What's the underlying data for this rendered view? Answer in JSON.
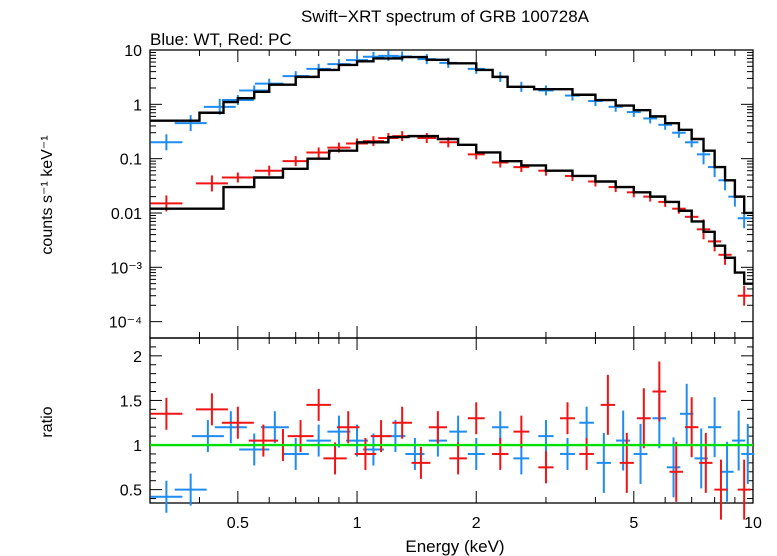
{
  "title": "Swift−XRT spectrum of GRB 100728A",
  "subtitle": "Blue: WT, Red: PC",
  "colors": {
    "wt": "#1e8cf0",
    "pc": "#f01414",
    "model": "#000000",
    "unity": "#00e000"
  },
  "chart_data": [
    {
      "type": "scatter",
      "panel": "spectrum",
      "ylabel": "counts s⁻¹ keV⁻¹",
      "xscale": "log",
      "yscale": "log",
      "xlim": [
        0.3,
        10
      ],
      "ylim": [
        5e-05,
        10
      ],
      "x_ticks": [
        0.5,
        1,
        2,
        5,
        10
      ],
      "y_ticks": [
        {
          "value": 10,
          "label": "10"
        },
        {
          "value": 1,
          "label": "1"
        },
        {
          "value": 0.1,
          "label": "0.1"
        },
        {
          "value": 0.01,
          "label": "0.01"
        },
        {
          "value": 0.001,
          "label": "10⁻³"
        },
        {
          "value": 0.0001,
          "label": "10⁻⁴"
        }
      ],
      "series": [
        {
          "name": "WT",
          "points": [
            [
              0.33,
              0.2
            ],
            [
              0.38,
              0.45
            ],
            [
              0.45,
              0.9
            ],
            [
              0.5,
              1.2
            ],
            [
              0.55,
              1.8
            ],
            [
              0.6,
              2.4
            ],
            [
              0.7,
              3.3
            ],
            [
              0.8,
              4.5
            ],
            [
              0.9,
              5.5
            ],
            [
              1.0,
              6.5
            ],
            [
              1.1,
              7.5
            ],
            [
              1.2,
              7.8
            ],
            [
              1.3,
              7.6
            ],
            [
              1.5,
              6.8
            ],
            [
              1.7,
              5.8
            ],
            [
              2.0,
              4.5
            ],
            [
              2.3,
              3.2
            ],
            [
              2.6,
              2.1
            ],
            [
              3.0,
              1.8
            ],
            [
              3.5,
              1.45
            ],
            [
              4.0,
              1.15
            ],
            [
              4.5,
              0.9
            ],
            [
              5.0,
              0.72
            ],
            [
              5.5,
              0.55
            ],
            [
              6.0,
              0.42
            ],
            [
              6.5,
              0.3
            ],
            [
              7.0,
              0.2
            ],
            [
              7.5,
              0.12
            ],
            [
              8.0,
              0.07
            ],
            [
              8.5,
              0.04
            ],
            [
              9.0,
              0.02
            ],
            [
              9.5,
              0.008
            ]
          ]
        },
        {
          "name": "PC",
          "points": [
            [
              0.33,
              0.015
            ],
            [
              0.43,
              0.035
            ],
            [
              0.5,
              0.045
            ],
            [
              0.6,
              0.06
            ],
            [
              0.7,
              0.09
            ],
            [
              0.8,
              0.13
            ],
            [
              0.9,
              0.16
            ],
            [
              1.0,
              0.19
            ],
            [
              1.1,
              0.21
            ],
            [
              1.2,
              0.24
            ],
            [
              1.3,
              0.26
            ],
            [
              1.5,
              0.24
            ],
            [
              1.7,
              0.2
            ],
            [
              2.0,
              0.12
            ],
            [
              2.3,
              0.085
            ],
            [
              2.6,
              0.07
            ],
            [
              3.0,
              0.06
            ],
            [
              3.5,
              0.048
            ],
            [
              4.0,
              0.038
            ],
            [
              4.5,
              0.03
            ],
            [
              5.0,
              0.024
            ],
            [
              5.5,
              0.02
            ],
            [
              6.0,
              0.016
            ],
            [
              6.5,
              0.012
            ],
            [
              7.0,
              0.0085
            ],
            [
              7.5,
              0.005
            ],
            [
              8.0,
              0.003
            ],
            [
              8.5,
              0.0017
            ],
            [
              9.5,
              0.0003
            ]
          ]
        }
      ],
      "models": [
        {
          "name": "WT model",
          "steps": [
            [
              0.3,
              0.5
            ],
            [
              0.4,
              0.7
            ],
            [
              0.46,
              1.1
            ],
            [
              0.5,
              1.3
            ],
            [
              0.55,
              1.7
            ],
            [
              0.6,
              2.3
            ],
            [
              0.7,
              3.2
            ],
            [
              0.8,
              4.3
            ],
            [
              0.9,
              5.3
            ],
            [
              1.0,
              6.2
            ],
            [
              1.1,
              7.0
            ],
            [
              1.3,
              7.4
            ],
            [
              1.5,
              6.6
            ],
            [
              1.7,
              5.7
            ],
            [
              2.0,
              4.3
            ],
            [
              2.2,
              3.2
            ],
            [
              2.4,
              2.1
            ],
            [
              2.8,
              1.9
            ],
            [
              3.5,
              1.5
            ],
            [
              4.0,
              1.2
            ],
            [
              4.5,
              0.95
            ],
            [
              5.0,
              0.78
            ],
            [
              5.5,
              0.6
            ],
            [
              6.0,
              0.45
            ],
            [
              6.5,
              0.34
            ],
            [
              7.0,
              0.23
            ],
            [
              7.5,
              0.14
            ],
            [
              8.0,
              0.07
            ],
            [
              8.5,
              0.04
            ],
            [
              9.0,
              0.02
            ],
            [
              9.5,
              0.01
            ],
            [
              10.0,
              0.01
            ]
          ]
        },
        {
          "name": "PC model",
          "steps": [
            [
              0.3,
              0.012
            ],
            [
              0.46,
              0.03
            ],
            [
              0.55,
              0.045
            ],
            [
              0.65,
              0.065
            ],
            [
              0.75,
              0.1
            ],
            [
              0.85,
              0.14
            ],
            [
              1.0,
              0.2
            ],
            [
              1.2,
              0.25
            ],
            [
              1.35,
              0.26
            ],
            [
              1.6,
              0.23
            ],
            [
              1.8,
              0.18
            ],
            [
              2.0,
              0.13
            ],
            [
              2.3,
              0.09
            ],
            [
              2.6,
              0.075
            ],
            [
              3.0,
              0.06
            ],
            [
              3.5,
              0.048
            ],
            [
              4.0,
              0.038
            ],
            [
              4.5,
              0.03
            ],
            [
              5.0,
              0.024
            ],
            [
              5.5,
              0.02
            ],
            [
              6.0,
              0.016
            ],
            [
              6.5,
              0.011
            ],
            [
              7.0,
              0.007
            ],
            [
              7.5,
              0.0045
            ],
            [
              8.0,
              0.0025
            ],
            [
              8.5,
              0.0015
            ],
            [
              9.0,
              0.0008
            ],
            [
              9.5,
              0.0005
            ],
            [
              10.0,
              0.0005
            ]
          ]
        }
      ]
    },
    {
      "type": "scatter",
      "panel": "ratio",
      "xlabel": "Energy (keV)",
      "ylabel": "ratio",
      "xscale": "log",
      "xlim": [
        0.3,
        10
      ],
      "ylim": [
        0.35,
        2.2
      ],
      "x_ticks": [
        0.5,
        1,
        2,
        5,
        10
      ],
      "y_ticks": [
        0.5,
        1,
        1.5,
        2
      ],
      "reference_line": 1,
      "series": [
        {
          "name": "WT",
          "points": [
            [
              0.33,
              0.42
            ],
            [
              0.38,
              0.5
            ],
            [
              0.42,
              1.1
            ],
            [
              0.48,
              1.2
            ],
            [
              0.55,
              0.95
            ],
            [
              0.62,
              1.2
            ],
            [
              0.7,
              0.9
            ],
            [
              0.8,
              1.05
            ],
            [
              0.9,
              1.15
            ],
            [
              1.0,
              1.05
            ],
            [
              1.1,
              0.95
            ],
            [
              1.25,
              1.1
            ],
            [
              1.4,
              0.9
            ],
            [
              1.6,
              1.05
            ],
            [
              1.8,
              1.15
            ],
            [
              2.0,
              0.9
            ],
            [
              2.3,
              1.2
            ],
            [
              2.6,
              0.85
            ],
            [
              3.0,
              1.1
            ],
            [
              3.4,
              0.9
            ],
            [
              3.8,
              1.25
            ],
            [
              4.2,
              0.8
            ],
            [
              4.7,
              1.05
            ],
            [
              5.2,
              0.9
            ],
            [
              5.8,
              1.3
            ],
            [
              6.3,
              0.75
            ],
            [
              6.8,
              1.35
            ],
            [
              7.4,
              0.85
            ],
            [
              8.0,
              1.2
            ],
            [
              8.6,
              0.7
            ],
            [
              9.2,
              1.05
            ],
            [
              9.7,
              0.9
            ]
          ]
        },
        {
          "name": "PC",
          "points": [
            [
              0.33,
              1.35
            ],
            [
              0.43,
              1.4
            ],
            [
              0.5,
              1.25
            ],
            [
              0.58,
              1.05
            ],
            [
              0.65,
              1.0
            ],
            [
              0.72,
              1.1
            ],
            [
              0.8,
              1.45
            ],
            [
              0.88,
              0.85
            ],
            [
              0.95,
              1.2
            ],
            [
              1.05,
              0.9
            ],
            [
              1.15,
              1.1
            ],
            [
              1.3,
              1.25
            ],
            [
              1.45,
              0.8
            ],
            [
              1.6,
              1.2
            ],
            [
              1.8,
              0.85
            ],
            [
              2.0,
              1.3
            ],
            [
              2.3,
              0.9
            ],
            [
              2.6,
              1.15
            ],
            [
              3.0,
              0.75
            ],
            [
              3.4,
              1.3
            ],
            [
              3.8,
              0.9
            ],
            [
              4.3,
              1.45
            ],
            [
              4.8,
              0.8
            ],
            [
              5.3,
              1.3
            ],
            [
              5.8,
              1.6
            ],
            [
              6.4,
              0.7
            ],
            [
              7.0,
              1.2
            ],
            [
              7.6,
              0.8
            ],
            [
              8.3,
              0.5
            ],
            [
              9.5,
              0.5
            ]
          ]
        }
      ]
    }
  ]
}
